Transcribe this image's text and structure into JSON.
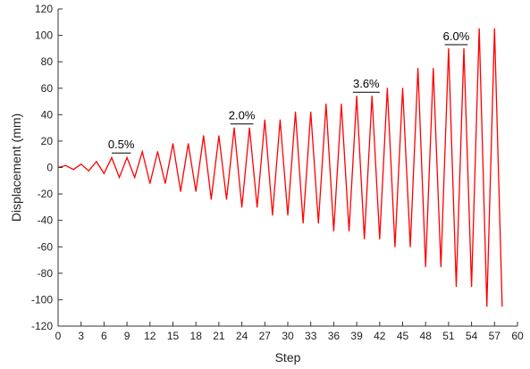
{
  "chart_data": {
    "type": "line",
    "title": "",
    "xlabel": "Step",
    "ylabel": "Displacement (mm)",
    "xlim": [
      0,
      60
    ],
    "ylim": [
      -120,
      120
    ],
    "xticks": [
      0,
      3,
      6,
      9,
      12,
      15,
      18,
      21,
      24,
      27,
      30,
      33,
      36,
      39,
      42,
      45,
      48,
      51,
      54,
      57,
      60
    ],
    "yticks": [
      -120,
      -100,
      -80,
      -60,
      -40,
      -20,
      0,
      20,
      40,
      60,
      80,
      100,
      120
    ],
    "grid": false,
    "legend": "none",
    "series": [
      {
        "color": "#ff0000",
        "x": [
          0,
          1,
          2,
          3,
          4,
          5,
          6,
          7,
          8,
          9,
          10,
          11,
          12,
          13,
          14,
          15,
          16,
          17,
          18,
          19,
          20,
          21,
          22,
          23,
          24,
          25,
          26,
          27,
          28,
          29,
          30,
          31,
          32,
          33,
          34,
          35,
          36,
          37,
          38,
          39,
          40,
          41,
          42,
          43,
          44,
          45,
          46,
          47,
          48,
          49,
          50,
          51,
          52,
          53,
          54,
          55,
          56,
          57,
          58
        ],
        "y": [
          0,
          1.5,
          -1.5,
          2.5,
          -2.5,
          4.5,
          -4.5,
          7.5,
          -7.5,
          7.5,
          -7.5,
          12,
          -12,
          12,
          -12,
          18,
          -18,
          18,
          -18,
          24,
          -24,
          24,
          -24,
          30,
          -30,
          30,
          -30,
          36,
          -36,
          36,
          -36,
          42,
          -42,
          42,
          -42,
          48,
          -48,
          48,
          -48,
          54,
          -54,
          54,
          -54,
          60,
          -60,
          60,
          -60,
          75,
          -75,
          75,
          -75,
          90,
          -90,
          90,
          -90,
          105,
          -105,
          105,
          -105
        ]
      }
    ],
    "annotations": [
      {
        "label": "0.5%",
        "x1": 7,
        "x2": 9.5,
        "y": 11
      },
      {
        "label": "2.0%",
        "x1": 22.5,
        "x2": 25.5,
        "y": 33
      },
      {
        "label": "3.6%",
        "x1": 38.5,
        "x2": 42,
        "y": 57
      },
      {
        "label": "6.0%",
        "x1": 50.5,
        "x2": 53.5,
        "y": 93
      }
    ]
  }
}
